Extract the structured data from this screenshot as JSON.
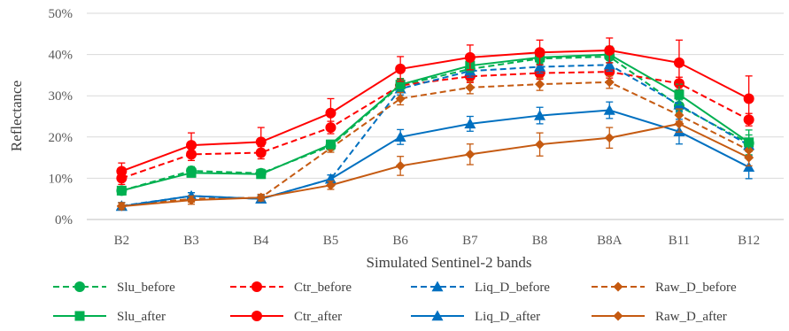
{
  "chart_data": {
    "type": "line",
    "xlabel": "Simulated Sentinel-2 bands",
    "ylabel": "Reflectance",
    "categories": [
      "B2",
      "B3",
      "B4",
      "B5",
      "B6",
      "B7",
      "B8",
      "B8A",
      "B11",
      "B12"
    ],
    "ylim": [
      0,
      50
    ],
    "yticks": [
      0,
      10,
      20,
      30,
      40,
      50
    ],
    "ytick_labels": [
      "0%",
      "10%",
      "20%",
      "30%",
      "40%",
      "50%"
    ],
    "grid": "horizontal",
    "legend_position": "bottom",
    "series": [
      {
        "name": "Slu_before",
        "color": "#00b050",
        "dash": true,
        "marker": "circle",
        "values": [
          7.0,
          11.8,
          11.2,
          17.8,
          32.5,
          36.5,
          39.0,
          39.5,
          27.5,
          18.5
        ],
        "errors": [
          1.0,
          1.0,
          1.0,
          1.0,
          1.5,
          1.5,
          1.5,
          1.5,
          1.5,
          2.0
        ]
      },
      {
        "name": "Ctr_before",
        "color": "#ff0000",
        "dash": true,
        "marker": "circle",
        "values": [
          10.0,
          15.8,
          16.2,
          22.3,
          32.5,
          34.7,
          35.5,
          35.8,
          33.0,
          24.2
        ],
        "errors": [
          1.5,
          1.5,
          1.5,
          1.5,
          1.5,
          1.5,
          1.5,
          1.5,
          1.5,
          1.5
        ]
      },
      {
        "name": "Liq_D_before",
        "color": "#0070c0",
        "dash": true,
        "marker": "triangle",
        "values": [
          3.3,
          5.7,
          5.0,
          9.8,
          31.7,
          36.0,
          37.0,
          37.5,
          27.8,
          18.0
        ],
        "errors": [
          0.8,
          0.8,
          0.8,
          1.0,
          1.5,
          1.5,
          1.5,
          1.5,
          1.5,
          1.5
        ]
      },
      {
        "name": "Raw_D_before",
        "color": "#c55a11",
        "dash": true,
        "marker": "diamond",
        "values": [
          3.3,
          5.0,
          5.3,
          17.3,
          29.3,
          32.0,
          32.8,
          33.3,
          25.3,
          16.8
        ],
        "errors": [
          0.8,
          0.8,
          0.8,
          1.0,
          1.5,
          1.5,
          1.5,
          1.5,
          1.5,
          1.5
        ]
      },
      {
        "name": "Slu_after",
        "color": "#00b050",
        "dash": false,
        "marker": "square",
        "values": [
          7.0,
          11.3,
          11.0,
          18.2,
          32.7,
          37.3,
          39.3,
          40.0,
          30.3,
          18.7
        ],
        "errors": [
          1.0,
          1.0,
          1.0,
          1.0,
          1.5,
          1.5,
          1.5,
          2.0,
          2.5,
          3.0
        ]
      },
      {
        "name": "Ctr_after",
        "color": "#ff0000",
        "dash": false,
        "marker": "circle",
        "values": [
          11.7,
          18.0,
          18.8,
          25.8,
          36.5,
          39.3,
          40.5,
          41.0,
          38.0,
          29.3
        ],
        "errors": [
          2.0,
          3.0,
          3.5,
          3.5,
          3.0,
          3.0,
          3.0,
          3.0,
          5.5,
          5.5
        ]
      },
      {
        "name": "Liq_D_after",
        "color": "#0070c0",
        "dash": false,
        "marker": "triangle",
        "values": [
          3.2,
          5.7,
          5.0,
          9.8,
          20.0,
          23.2,
          25.2,
          26.5,
          21.3,
          12.7
        ],
        "errors": [
          0.8,
          0.8,
          0.8,
          1.0,
          1.8,
          1.8,
          2.0,
          2.0,
          3.0,
          2.8
        ]
      },
      {
        "name": "Raw_D_after",
        "color": "#c55a11",
        "dash": false,
        "marker": "diamond",
        "values": [
          3.2,
          4.7,
          5.3,
          8.3,
          13.0,
          15.8,
          18.2,
          19.8,
          23.2,
          15.0
        ],
        "errors": [
          0.8,
          1.0,
          0.8,
          1.0,
          2.3,
          2.5,
          2.8,
          2.5,
          2.0,
          2.0
        ]
      }
    ]
  }
}
